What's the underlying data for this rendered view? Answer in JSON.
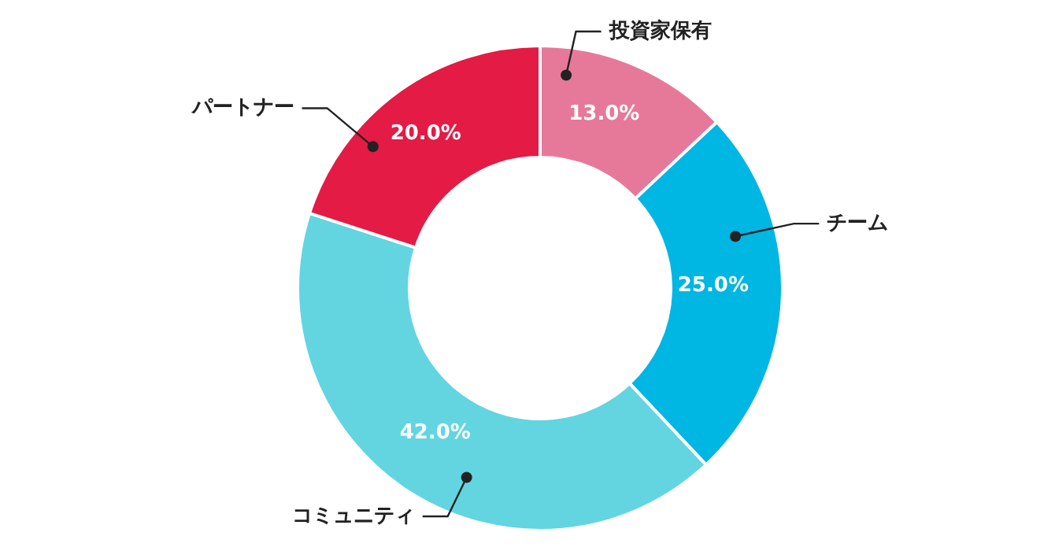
{
  "chart_data": {
    "type": "donut",
    "categories": [
      "投資家保有",
      "チーム",
      "コミュニティ",
      "パートナー"
    ],
    "values": [
      13,
      25,
      42,
      20
    ],
    "value_labels": [
      "13.0%",
      "25.0%",
      "42.0%",
      "20.0%"
    ],
    "colors": [
      "#e6799a",
      "#00b6e2",
      "#62d5e1",
      "#e31b45"
    ],
    "legend": false
  }
}
